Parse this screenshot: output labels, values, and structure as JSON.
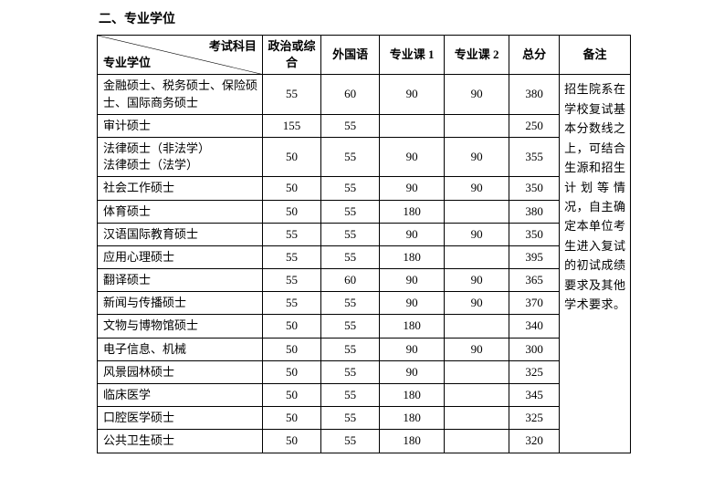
{
  "section_title": "二、专业学位",
  "header": {
    "diag_top": "考试科目",
    "diag_bottom": "专业学位",
    "col1": "政治或综合",
    "col2": "外国语",
    "col3": "专业课 1",
    "col4": "专业课 2",
    "total": "总分",
    "note": "备注"
  },
  "note_text": "招生院系在学校复试基本分数线之上，可结合生源和招生计划等情况，自主确定本单位考生进入复试的初试成绩要求及其他学术要求。",
  "rows": [
    {
      "major": "金融硕士、税务硕士、保险硕士、国际商务硕士",
      "s1": "55",
      "s2": "60",
      "s3": "90",
      "s4": "90",
      "total": "380"
    },
    {
      "major": "审计硕士",
      "s1": "155",
      "s2": "55",
      "s3": "",
      "s4": "",
      "total": "250"
    },
    {
      "major": "法律硕士（非法学）\n法律硕士（法学）",
      "s1": "50",
      "s2": "55",
      "s3": "90",
      "s4": "90",
      "total": "355"
    },
    {
      "major": "社会工作硕士",
      "s1": "50",
      "s2": "55",
      "s3": "90",
      "s4": "90",
      "total": "350"
    },
    {
      "major": "体育硕士",
      "s1": "50",
      "s2": "55",
      "s3": "180",
      "s4": "",
      "total": "380"
    },
    {
      "major": "汉语国际教育硕士",
      "s1": "55",
      "s2": "55",
      "s3": "90",
      "s4": "90",
      "total": "350"
    },
    {
      "major": "应用心理硕士",
      "s1": "55",
      "s2": "55",
      "s3": "180",
      "s4": "",
      "total": "395"
    },
    {
      "major": "翻译硕士",
      "s1": "55",
      "s2": "60",
      "s3": "90",
      "s4": "90",
      "total": "365"
    },
    {
      "major": "新闻与传播硕士",
      "s1": "55",
      "s2": "55",
      "s3": "90",
      "s4": "90",
      "total": "370"
    },
    {
      "major": "文物与博物馆硕士",
      "s1": "50",
      "s2": "55",
      "s3": "180",
      "s4": "",
      "total": "340"
    },
    {
      "major": "电子信息、机械",
      "s1": "50",
      "s2": "55",
      "s3": "90",
      "s4": "90",
      "total": "300"
    },
    {
      "major": "风景园林硕士",
      "s1": "50",
      "s2": "55",
      "s3": "90",
      "s4": "",
      "total": "325"
    },
    {
      "major": "临床医学",
      "s1": "50",
      "s2": "55",
      "s3": "180",
      "s4": "",
      "total": "345"
    },
    {
      "major": "口腔医学硕士",
      "s1": "50",
      "s2": "55",
      "s3": "180",
      "s4": "",
      "total": "325"
    },
    {
      "major": "公共卫生硕士",
      "s1": "50",
      "s2": "55",
      "s3": "180",
      "s4": "",
      "total": "320"
    }
  ],
  "colors": {
    "border": "#000000",
    "background": "#ffffff",
    "text": "#000000"
  }
}
